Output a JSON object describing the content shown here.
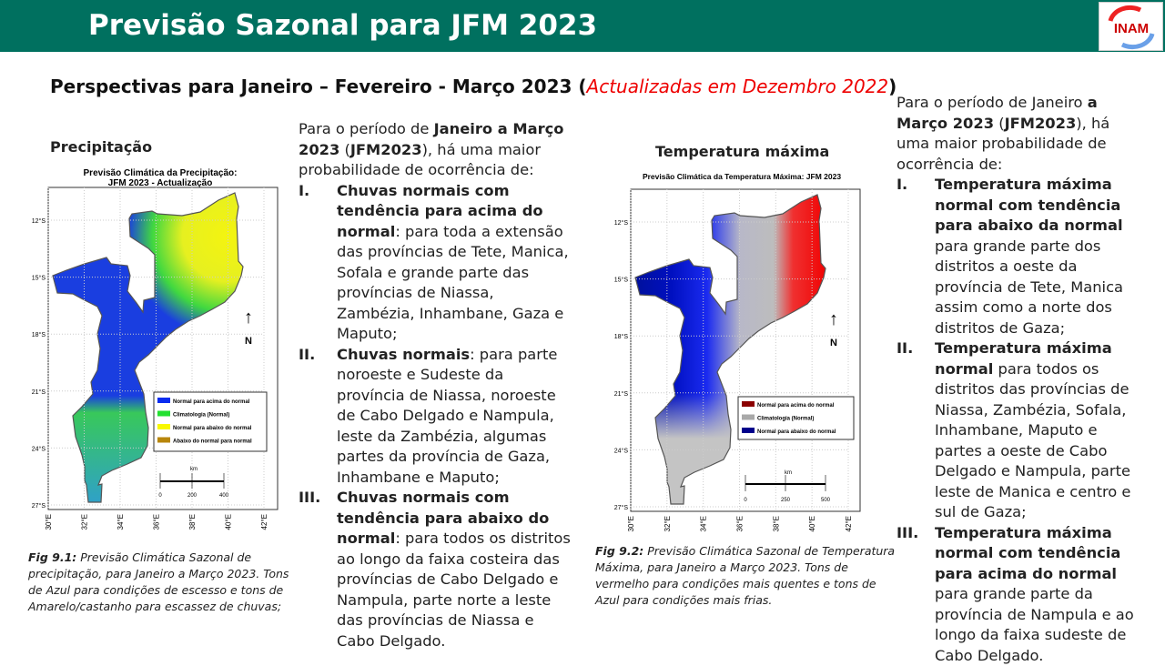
{
  "header": {
    "title": "Previsão Sazonal para JFM 2023",
    "logo_text": "INAM"
  },
  "subtitle": {
    "main": "Perspectivas para  Janeiro – Fevereiro - Março 2023 (",
    "updated": "Actualizadas em Dezembro 2022",
    "close": ")"
  },
  "precip": {
    "section": "Precipitação",
    "map_title_1": "Previsão Climática da Precipitação:",
    "map_title_2": "JFM 2023 - Actualização",
    "lat_ticks": [
      "12°S",
      "15°S",
      "18°S",
      "21°S",
      "24°S",
      "27°S"
    ],
    "lon_ticks": [
      "30°E",
      "32°E",
      "34°E",
      "36°E",
      "38°E",
      "40°E",
      "42°E"
    ],
    "north": "N",
    "arrow": "↑",
    "legend": [
      {
        "label": "Normal para acima do normal",
        "color": "#0a2cf0"
      },
      {
        "label": "Climatologia (Normal)",
        "color": "#22e030"
      },
      {
        "label": "Normal para abaixo do normal",
        "color": "#f8f800"
      },
      {
        "label": "Abaixo do normal para normal",
        "color": "#b8860b"
      }
    ],
    "scale": {
      "unit": "km",
      "ticks": [
        "0",
        "200",
        "400"
      ]
    },
    "caption_label": "Fig 9.1:",
    "caption": " Previsão Climática Sazonal de precipitação, para Janeiro a Março 2023. Tons de Azul para condições de escesso e tons de Amarelo/castanho para escassez de chuvas;"
  },
  "precip_text": {
    "intro": [
      {
        "t": "Para o período de ",
        "b": false
      },
      {
        "t": "Janeiro a Março 2023",
        "b": true
      },
      {
        "t": " (",
        "b": false
      },
      {
        "t": "JFM2023",
        "b": true
      },
      {
        "t": "), há uma maior probabilidade de ocorrência de:",
        "b": false
      }
    ],
    "items": [
      {
        "num": "I.",
        "bold": "Chuvas normais com tendência para acima do normal",
        "text": ": para toda a extensão das províncias de Tete, Manica, Sofala e grande parte das províncias de Niassa, Zambézia, Inhambane, Gaza e Maputo;"
      },
      {
        "num": "II.",
        "bold": "Chuvas normais",
        "text": ": para parte noroeste e Sudeste da província de Niassa, noroeste de Cabo Delgado e Nampula, leste da Zambézia, algumas partes da província de Gaza, Inhambane e Maputo;"
      },
      {
        "num": "III.",
        "bold": "Chuvas normais com tendência para abaixo do normal",
        "text": ": para todos os distritos ao longo da faixa costeira das províncias de Cabo Delgado e Nampula, parte norte a leste das províncias de Niassa e Cabo Delgado."
      }
    ]
  },
  "temp": {
    "section": "Temperatura máxima",
    "map_title": "Previsão Climática da Temperatura Máxima: JFM 2023",
    "lat_ticks": [
      "12°S",
      "15°S",
      "18°S",
      "21°S",
      "24°S",
      "27°S"
    ],
    "lon_ticks": [
      "30°E",
      "32°E",
      "34°E",
      "36°E",
      "38°E",
      "40°E",
      "42°E"
    ],
    "north": "N",
    "arrow": "↑",
    "legend": [
      {
        "label": "Normal para acima do normal",
        "color": "#8b0000"
      },
      {
        "label": "Climatologia (Normal)",
        "color": "#a9a9a9"
      },
      {
        "label": "Normal para abaixo do normal",
        "color": "#00008b"
      }
    ],
    "scale": {
      "unit": "km",
      "ticks": [
        "0",
        "250",
        "500"
      ]
    },
    "caption_label": "Fig 9.2:",
    "caption": " Previsão Climática Sazonal de Temperatura Máxima, para Janeiro a Março 2023. Tons de vermelho para condições mais quentes e tons de Azul para condições mais frias."
  },
  "temp_text": {
    "intro": [
      {
        "t": "Para o período de Janeiro ",
        "b": false
      },
      {
        "t": "a Março 2023",
        "b": true
      },
      {
        "t": " (",
        "b": false
      },
      {
        "t": "JFM2023",
        "b": true
      },
      {
        "t": "), há uma maior probabilidade de ocorrência de:",
        "b": false
      }
    ],
    "items": [
      {
        "num": "I.",
        "bold": "Temperatura máxima normal com tendência para abaixo da normal",
        "text": " para grande parte dos distritos a oeste da província de Tete, Manica assim como a norte dos distritos de Gaza;"
      },
      {
        "num": "II.",
        "bold": "Temperatura máxima normal",
        "text": " para todos os distritos das províncias de Niassa, Zambézia, Sofala, Inhambane, Maputo e partes a oeste de Cabo Delgado e Nampula, parte leste de Manica e centro e sul de Gaza;"
      },
      {
        "num": "III.",
        "bold": "Temperatura máxima normal com tendência para acima do normal",
        "text": " para grande parte da província de Nampula e ao longo da faixa sudeste de Cabo Delgado."
      }
    ]
  }
}
